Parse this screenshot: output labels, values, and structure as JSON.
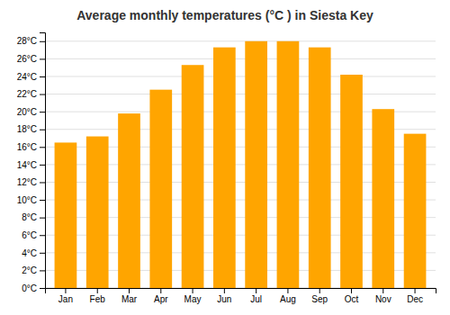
{
  "chart_data": {
    "type": "bar",
    "title": "Average monthly temperatures (°C ) in Siesta Key",
    "categories": [
      "Jan",
      "Feb",
      "Mar",
      "Apr",
      "May",
      "Jun",
      "Jul",
      "Aug",
      "Sep",
      "Oct",
      "Nov",
      "Dec"
    ],
    "values": [
      16.5,
      17.2,
      19.8,
      22.5,
      25.3,
      27.3,
      28.0,
      28.0,
      27.3,
      24.2,
      20.3,
      17.5
    ],
    "color": "#FFA500",
    "ylim": [
      0,
      29
    ],
    "yticks": [
      {
        "value": 0,
        "label": "0°C"
      },
      {
        "value": 2,
        "label": "2°C"
      },
      {
        "value": 4,
        "label": "4°C"
      },
      {
        "value": 6,
        "label": "6°C"
      },
      {
        "value": 8,
        "label": "8°C"
      },
      {
        "value": 10,
        "label": "10°C"
      },
      {
        "value": 12,
        "label": "12°C"
      },
      {
        "value": 14,
        "label": "14°C"
      },
      {
        "value": 16,
        "label": "16°C"
      },
      {
        "value": 18,
        "label": "18°C"
      },
      {
        "value": 20,
        "label": "20°C"
      },
      {
        "value": 22,
        "label": "22°C"
      },
      {
        "value": 24,
        "label": "24°C"
      },
      {
        "value": 26,
        "label": "26°C"
      },
      {
        "value": 28,
        "label": "28°C"
      }
    ],
    "grid": true
  }
}
